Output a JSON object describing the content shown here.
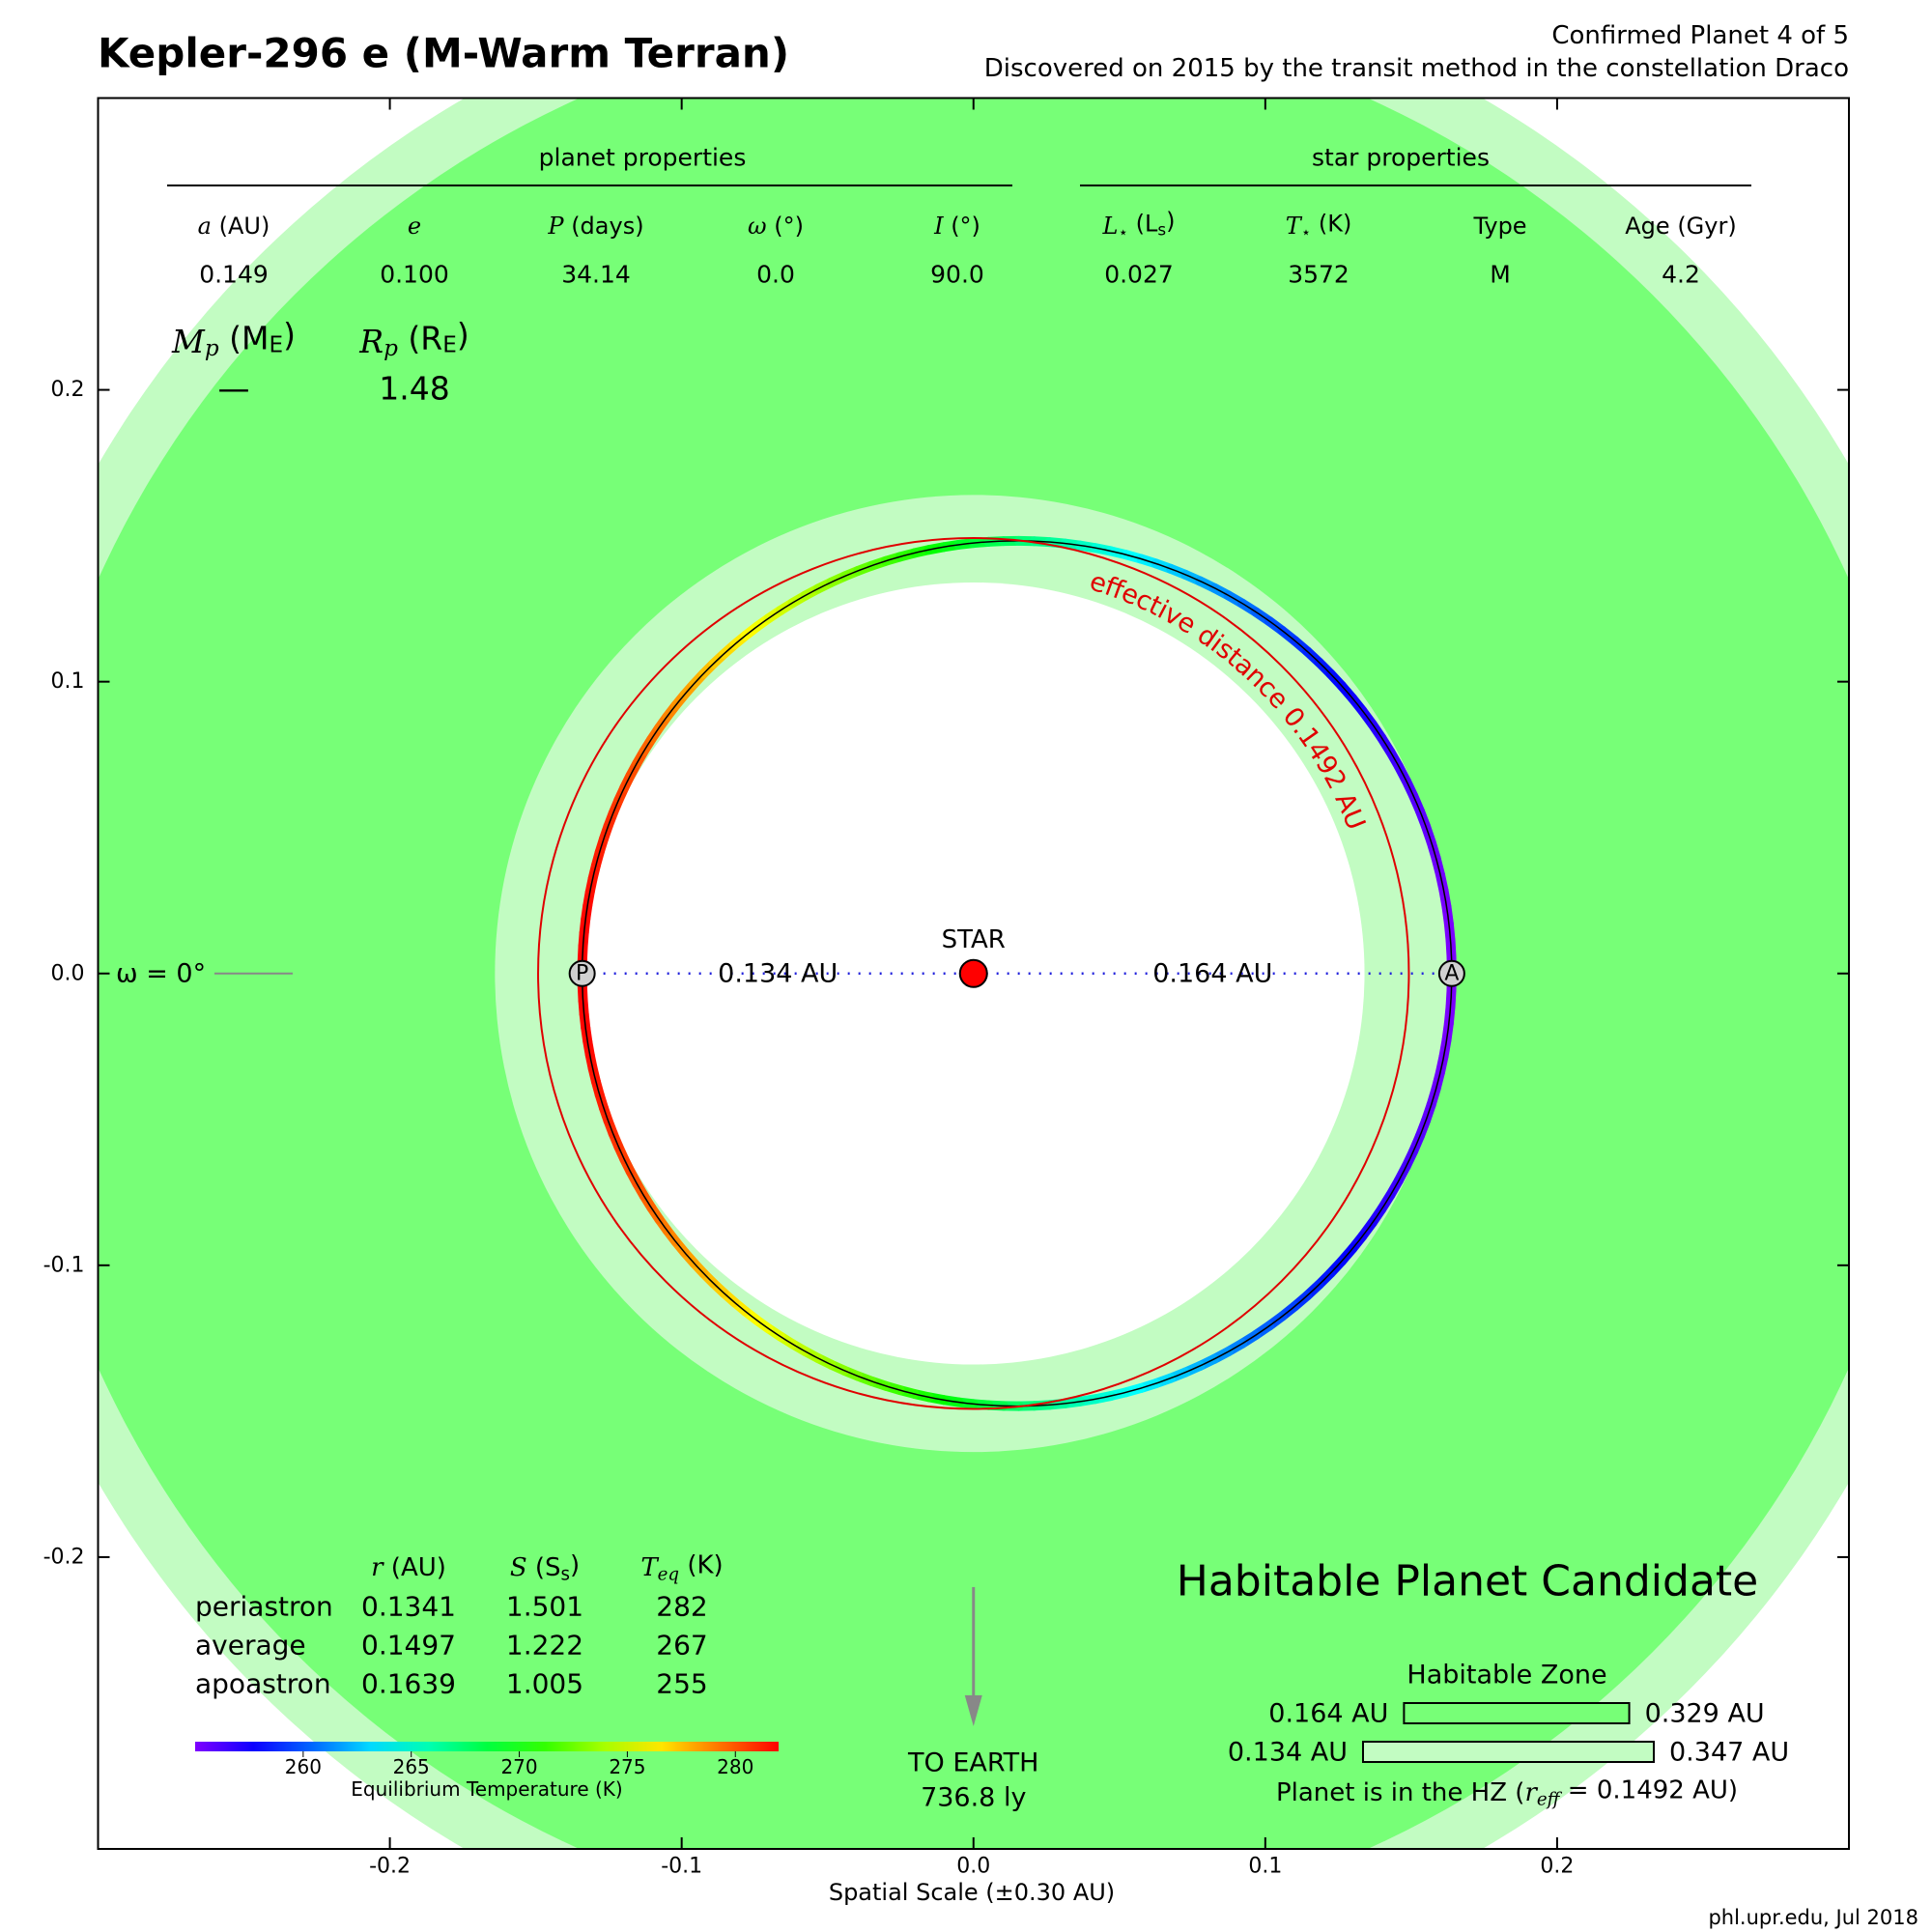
{
  "chart_data": {
    "type": "orbit",
    "title": "Kepler-296 e (M-Warm Terran)",
    "subtitle": [
      "Confirmed Planet 4 of 5",
      "Discovered on 2015 by the transit method in the constellation Draco"
    ],
    "credit": "phl.upr.edu, Jul 2018",
    "xlabel": "Spatial Scale (±0.30 AU)",
    "xlim": [
      -0.3,
      0.3
    ],
    "ylim": [
      -0.3,
      0.3
    ],
    "xticks": [
      -0.2,
      -0.1,
      {
        "value": 0,
        "label": "0.0"
      },
      0.1,
      0.2
    ],
    "yticks": [
      -0.2,
      -0.1,
      {
        "value": 0,
        "label": "0.0"
      },
      0.1,
      0.2
    ],
    "planet_properties": {
      "title": "planet properties",
      "headers": [
        [
          {
            "text": "a",
            "style": "italic"
          },
          {
            "text": " (AU)"
          }
        ],
        [
          {
            "text": "e",
            "style": "italic"
          }
        ],
        [
          {
            "text": "P",
            "style": "italic"
          },
          {
            "text": " (days)"
          }
        ],
        [
          {
            "text": "ω",
            "style": "italic"
          },
          {
            "text": " (°)"
          }
        ],
        [
          {
            "text": "I",
            "style": "italic"
          },
          {
            "text": " (°)"
          }
        ]
      ],
      "values": [
        0.149,
        {
          "value": 0.1,
          "label": "0.100"
        },
        34.14,
        {
          "value": 0,
          "label": "0.0"
        },
        {
          "value": 90,
          "label": "90.0"
        }
      ]
    },
    "star_properties": {
      "title": "star properties",
      "headers": [
        [
          {
            "text": "L",
            "style": "italic"
          },
          {
            "text": "⋆",
            "style": "sub"
          },
          {
            "text": " (L"
          },
          {
            "text": "s",
            "style": "sub"
          },
          {
            "text": ")"
          }
        ],
        [
          {
            "text": "T",
            "style": "italic"
          },
          {
            "text": "⋆",
            "style": "sub"
          },
          {
            "text": " (K)"
          }
        ],
        [
          {
            "text": "Type"
          }
        ],
        [
          {
            "text": "Age (Gyr)"
          }
        ]
      ],
      "values": [
        0.027,
        3572,
        "M",
        4.2
      ]
    },
    "mass_radius": {
      "headers": [
        [
          {
            "text": "M",
            "style": "italic"
          },
          {
            "text": "p",
            "style": "italic-sub"
          },
          {
            "text": " (M"
          },
          {
            "text": "E",
            "style": "sub"
          },
          {
            "text": ")"
          }
        ],
        [
          {
            "text": "R",
            "style": "italic"
          },
          {
            "text": "p",
            "style": "italic-sub"
          },
          {
            "text": " (R"
          },
          {
            "text": "E",
            "style": "sub"
          },
          {
            "text": ")"
          }
        ]
      ],
      "values": [
        "—",
        1.48
      ]
    },
    "omega_label": "ω = 0°",
    "star_label": "STAR",
    "orbit": {
      "periastron_marker": "P",
      "apoastron_marker": "A",
      "periastron_distance_label": "0.134 AU",
      "apoastron_distance_label": "0.164 AU",
      "effective_distance": 0.1492,
      "effective_distance_label": "effective distance 0.1492 AU",
      "effective_color": "#e00000"
    },
    "earth": {
      "label": "TO EARTH",
      "distance": "736.8 ly"
    },
    "status": {
      "text": "Habitable Planet Candidate",
      "color": "#ee0000"
    },
    "orbit_table": {
      "headers": [
        [
          {
            "text": "r",
            "style": "italic"
          },
          {
            "text": " (AU)"
          }
        ],
        [
          {
            "text": "S",
            "style": "italic"
          },
          {
            "text": " (S"
          },
          {
            "text": "s",
            "style": "sub"
          },
          {
            "text": ")"
          }
        ],
        [
          {
            "text": "T",
            "style": "italic"
          },
          {
            "text": "eq",
            "style": "italic-sub"
          },
          {
            "text": " (K)"
          }
        ]
      ],
      "rows": [
        {
          "label": "periastron",
          "values": [
            0.1341,
            1.501,
            282
          ]
        },
        {
          "label": "average",
          "values": [
            0.1497,
            1.222,
            267
          ],
          "color": "#ee0000"
        },
        {
          "label": "apoastron",
          "values": [
            0.1639,
            1.005,
            255
          ]
        }
      ]
    },
    "colorbar": {
      "label": "Equilibrium Temperature (K)",
      "lim": [
        255,
        282
      ],
      "ticks": [
        260,
        265,
        270,
        275,
        280
      ]
    },
    "habitable_zone": {
      "title": "Habitable Zone",
      "conservative": [
        0.164,
        0.329
      ],
      "conservative_labels": [
        "0.164 AU",
        "0.329 AU"
      ],
      "conservative_color": "#77ff77",
      "optimistic": [
        0.134,
        0.347
      ],
      "optimistic_labels": [
        "0.134 AU",
        "0.347 AU"
      ],
      "optimistic_color": "#c2fcc2",
      "note": [
        {
          "text": "Planet is in the HZ ("
        },
        {
          "text": "r",
          "style": "italic"
        },
        {
          "text": "eff",
          "style": "italic-sub"
        },
        {
          "text": " = 0.1492 AU)"
        }
      ]
    }
  }
}
